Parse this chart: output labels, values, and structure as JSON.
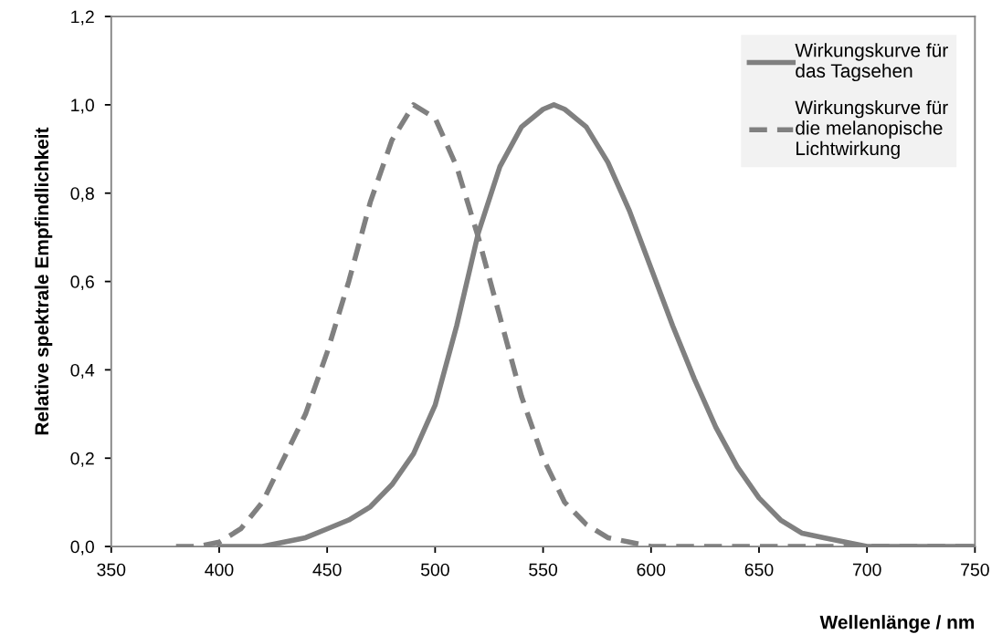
{
  "chart_data": {
    "type": "line",
    "xlabel": "Wellenlänge / nm",
    "ylabel": "Relative spektrale Empfindlichkeit",
    "xlim": [
      350,
      750
    ],
    "xticks": [
      350,
      400,
      450,
      500,
      550,
      600,
      650,
      700,
      750
    ],
    "ylim": [
      0,
      1.2
    ],
    "yticks": [
      {
        "value": 0,
        "label": "0,0"
      },
      {
        "value": 0.2,
        "label": "0,2"
      },
      {
        "value": 0.4,
        "label": "0,4"
      },
      {
        "value": 0.6,
        "label": "0,6"
      },
      {
        "value": 0.8,
        "label": "0,8"
      },
      {
        "value": 1.0,
        "label": "1,0"
      },
      {
        "value": 1.2,
        "label": "1,2"
      }
    ],
    "grid": false,
    "legend": "top right",
    "marker": "none",
    "series": [
      {
        "name": "Wirkungskurve für\ndas Tagsehen",
        "color": "#808080",
        "line_style": "solid",
        "x": [
          400,
          420,
          440,
          450,
          460,
          470,
          480,
          490,
          500,
          510,
          520,
          530,
          540,
          550,
          555,
          560,
          570,
          580,
          590,
          600,
          610,
          620,
          630,
          640,
          650,
          660,
          670,
          680,
          690,
          700,
          720,
          750
        ],
        "values": [
          0.0,
          0.0,
          0.02,
          0.04,
          0.06,
          0.09,
          0.14,
          0.21,
          0.32,
          0.5,
          0.71,
          0.86,
          0.95,
          0.99,
          1.0,
          0.99,
          0.95,
          0.87,
          0.76,
          0.63,
          0.5,
          0.38,
          0.27,
          0.18,
          0.11,
          0.06,
          0.03,
          0.02,
          0.01,
          0.0,
          0.0,
          0.0
        ]
      },
      {
        "name": "Wirkungskurve für\ndie melanopische\nLichtwirkung",
        "color": "#808080",
        "line_style": "dashed",
        "x": [
          380,
          390,
          400,
          410,
          420,
          430,
          440,
          450,
          460,
          470,
          480,
          490,
          500,
          510,
          520,
          530,
          540,
          550,
          560,
          570,
          580,
          590,
          600,
          650,
          700,
          750
        ],
        "values": [
          0.0,
          0.0,
          0.01,
          0.04,
          0.1,
          0.2,
          0.3,
          0.44,
          0.6,
          0.78,
          0.92,
          1.0,
          0.97,
          0.86,
          0.7,
          0.52,
          0.34,
          0.2,
          0.1,
          0.05,
          0.02,
          0.01,
          0.0,
          0.0,
          0.0,
          0.0
        ]
      }
    ]
  }
}
